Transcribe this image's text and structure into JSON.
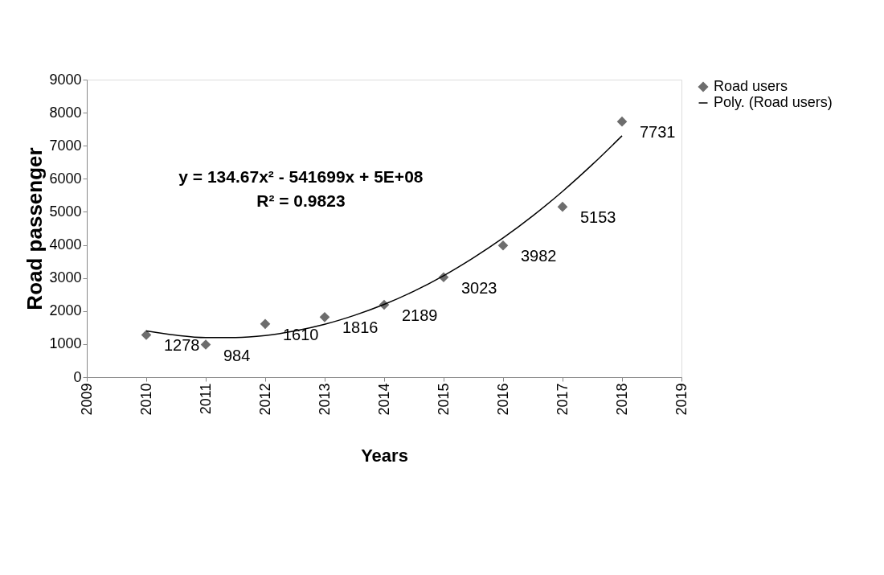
{
  "chart_data": {
    "type": "scatter",
    "xlabel": "Years",
    "ylabel": "Road passenger",
    "annotations": [
      "y = 134.67x² - 541699x + 5E+08",
      "R² = 0.9823"
    ],
    "x": [
      2010,
      2011,
      2012,
      2013,
      2014,
      2015,
      2016,
      2017,
      2018
    ],
    "series": [
      {
        "name": "Road users",
        "marker": "diamond",
        "color": "#6d6d6d",
        "values": [
          1278,
          984,
          1610,
          1816,
          2189,
          3023,
          3982,
          5153,
          7731
        ],
        "value_labels": [
          "1278",
          "984",
          "1610",
          "1816",
          "2189",
          "3023",
          "3982",
          "5153",
          "7731"
        ]
      },
      {
        "name": "Poly. (Road users)",
        "type": "line",
        "marker": "none",
        "color": "#000000",
        "x": [
          2010,
          2010.5,
          2011,
          2011.5,
          2012,
          2012.5,
          2013,
          2013.5,
          2014,
          2014.5,
          2015,
          2015.5,
          2016,
          2016.5,
          2017,
          2017.5,
          2018
        ],
        "values": [
          1400,
          1270,
          1200,
          1200,
          1260,
          1400,
          1600,
          1870,
          2200,
          2600,
          3070,
          3610,
          4210,
          4880,
          5620,
          6430,
          7300
        ]
      }
    ],
    "xlim": [
      2009,
      2019
    ],
    "xticks": [
      2009,
      2010,
      2011,
      2012,
      2013,
      2014,
      2015,
      2016,
      2017,
      2018,
      2019
    ],
    "ylim": [
      0,
      9000
    ],
    "yticks": [
      0,
      1000,
      2000,
      3000,
      4000,
      5000,
      6000,
      7000,
      8000,
      9000
    ],
    "legend": "right"
  }
}
